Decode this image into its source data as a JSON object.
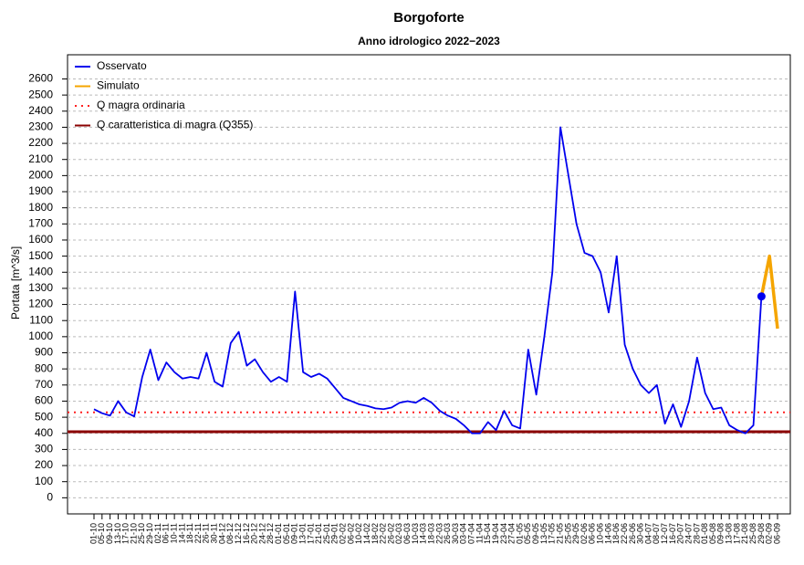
{
  "chart_data": {
    "type": "line",
    "title": "Borgoforte",
    "subtitle": "Anno idrologico 2022−2023",
    "y_label": "Portata [m^3/s]",
    "categories": [
      "01-10",
      "05-10",
      "09-10",
      "13-10",
      "17-10",
      "21-10",
      "25-10",
      "29-10",
      "02-11",
      "06-11",
      "10-11",
      "14-11",
      "18-11",
      "22-11",
      "26-11",
      "30-11",
      "04-12",
      "08-12",
      "12-12",
      "16-12",
      "20-12",
      "24-12",
      "28-12",
      "01-01",
      "05-01",
      "09-01",
      "13-01",
      "17-01",
      "21-01",
      "25-01",
      "29-01",
      "02-02",
      "06-02",
      "10-02",
      "14-02",
      "18-02",
      "22-02",
      "26-02",
      "02-03",
      "06-03",
      "10-03",
      "14-03",
      "18-03",
      "22-03",
      "26-03",
      "30-03",
      "03-04",
      "07-04",
      "11-04",
      "15-04",
      "19-04",
      "23-04",
      "27-04",
      "01-05",
      "05-05",
      "09-05",
      "13-05",
      "17-05",
      "21-05",
      "25-05",
      "29-05",
      "02-06",
      "06-06",
      "10-06",
      "14-06",
      "18-06",
      "22-06",
      "26-06",
      "30-06",
      "04-07",
      "08-07",
      "12-07",
      "16-07",
      "20-07",
      "24-07",
      "28-07",
      "01-08",
      "05-08",
      "09-08",
      "13-08",
      "17-08",
      "21-08",
      "25-08",
      "29-08",
      "02-09",
      "06-09"
    ],
    "series": [
      {
        "name": "Osservato",
        "color": "#0000ee",
        "values": [
          550,
          525,
          510,
          600,
          530,
          505,
          750,
          920,
          730,
          840,
          780,
          740,
          750,
          740,
          900,
          720,
          690,
          960,
          1030,
          820,
          860,
          780,
          720,
          750,
          720,
          1280,
          780,
          750,
          770,
          740,
          680,
          620,
          600,
          580,
          570,
          555,
          550,
          560,
          590,
          600,
          590,
          620,
          590,
          540,
          510,
          490,
          450,
          400,
          400,
          470,
          420,
          540,
          450,
          430,
          920,
          640,
          1000,
          1400,
          2300,
          2000,
          1700,
          1520,
          1500,
          1400,
          1150,
          1500,
          950,
          800,
          700,
          650,
          700,
          460,
          580,
          440,
          600,
          870,
          650,
          550,
          560,
          450,
          420,
          400,
          450,
          1250,
          null,
          null
        ]
      },
      {
        "name": "Simulato",
        "color": "#f5a500",
        "values": [
          null,
          null,
          null,
          null,
          null,
          null,
          null,
          null,
          null,
          null,
          null,
          null,
          null,
          null,
          null,
          null,
          null,
          null,
          null,
          null,
          null,
          null,
          null,
          null,
          null,
          null,
          null,
          null,
          null,
          null,
          null,
          null,
          null,
          null,
          null,
          null,
          null,
          null,
          null,
          null,
          null,
          null,
          null,
          null,
          null,
          null,
          null,
          null,
          null,
          null,
          null,
          null,
          null,
          null,
          null,
          null,
          null,
          null,
          null,
          null,
          null,
          null,
          null,
          null,
          null,
          null,
          null,
          null,
          null,
          null,
          null,
          null,
          null,
          null,
          null,
          null,
          null,
          null,
          null,
          null,
          null,
          null,
          null,
          1250,
          1500,
          1050
        ]
      }
    ],
    "reference_lines": [
      {
        "name": "Q magra ordinaria",
        "value": 530,
        "color": "#ff2020",
        "style": "dotted"
      },
      {
        "name": "Q caratteristica di magra (Q355)",
        "value": 410,
        "color": "#8b0000",
        "style": "solid"
      }
    ],
    "ylim": [
      -100,
      2750
    ],
    "yticks": [
      0,
      100,
      200,
      300,
      400,
      500,
      600,
      700,
      800,
      900,
      1000,
      1100,
      1200,
      1300,
      1400,
      1500,
      1600,
      1700,
      1800,
      1900,
      2000,
      2100,
      2200,
      2300,
      2400,
      2500,
      2600
    ],
    "grid": true,
    "legend": "top-left"
  }
}
